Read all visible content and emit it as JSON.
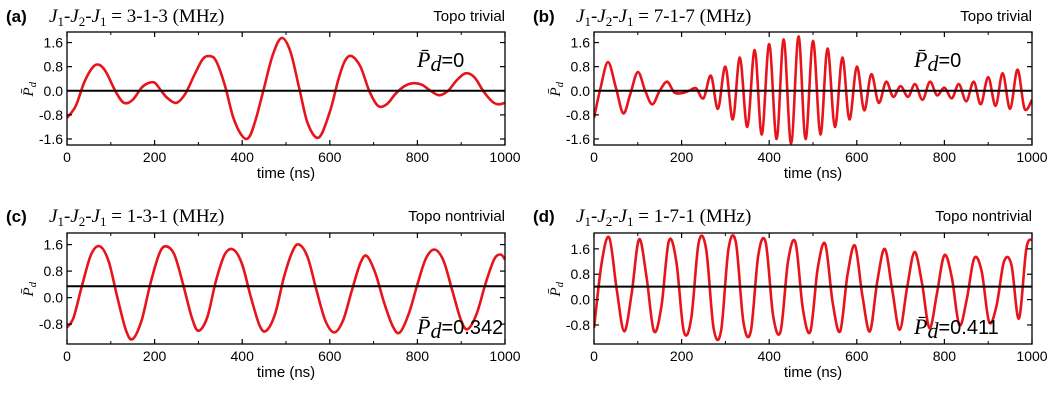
{
  "figure": {
    "x_axis_label": "time (ns)",
    "y_axis_label": "P̄",
    "y_axis_label_sub": "d",
    "avg_symbol": "P̄",
    "avg_symbol_sub": "d",
    "avg_eq": "=",
    "curve_color": "#e8141b",
    "axis_color": "#000000"
  },
  "chart_data": [
    {
      "id": "a",
      "type": "line",
      "panel_label": "(a)",
      "formula_prefix": "J",
      "formula_values": "3-1-3",
      "formula_unit": "(MHz)",
      "regime": "Topo trivial",
      "avg_value": "0",
      "baseline": 0,
      "xlim": [
        0,
        1000
      ],
      "ylim": [
        -1.8,
        1.95
      ],
      "xticks": [
        "0",
        "200",
        "400",
        "600",
        "800",
        "1000"
      ],
      "yticks": [
        "1.6",
        "0.8",
        "0.0",
        "-0.8",
        "-1.6"
      ],
      "series": [
        {
          "color": "#e8141b",
          "x": [
            0,
            20,
            40,
            60,
            75,
            90,
            110,
            130,
            150,
            170,
            185,
            200,
            215,
            230,
            250,
            270,
            290,
            310,
            325,
            340,
            360,
            380,
            400,
            415,
            430,
            450,
            470,
            490,
            510,
            530,
            550,
            575,
            600,
            620,
            635,
            650,
            670,
            690,
            710,
            730,
            750,
            770,
            790,
            810,
            830,
            850,
            870,
            890,
            910,
            930,
            950,
            970,
            985,
            1000
          ],
          "y": [
            -0.9,
            -0.5,
            0.3,
            0.8,
            0.85,
            0.6,
            0.0,
            -0.4,
            -0.3,
            0.1,
            0.25,
            0.27,
            0.0,
            -0.25,
            -0.4,
            -0.1,
            0.5,
            1.05,
            1.15,
            1.0,
            0.2,
            -0.9,
            -1.5,
            -1.55,
            -1.0,
            0.1,
            1.2,
            1.75,
            1.3,
            0.1,
            -1.1,
            -1.55,
            -0.7,
            0.4,
            1.0,
            1.15,
            0.8,
            0.0,
            -0.5,
            -0.45,
            -0.1,
            0.15,
            0.25,
            0.2,
            0.0,
            -0.15,
            0.0,
            0.35,
            0.58,
            0.45,
            0.0,
            -0.35,
            -0.45,
            -0.4
          ]
        }
      ]
    },
    {
      "id": "b",
      "type": "line",
      "panel_label": "(b)",
      "formula_prefix": "J",
      "formula_values": "7-1-7",
      "formula_unit": "(MHz)",
      "regime": "Topo trivial",
      "avg_value": "0",
      "baseline": 0,
      "xlim": [
        0,
        1000
      ],
      "ylim": [
        -1.8,
        1.95
      ],
      "xticks": [
        "0",
        "200",
        "400",
        "600",
        "800",
        "1000"
      ],
      "yticks": [
        "1.6",
        "0.8",
        "0.0",
        "-0.8",
        "-1.6"
      ],
      "series": [
        {
          "color": "#e8141b",
          "x": [
            0,
            15,
            32,
            50,
            67,
            83,
            100,
            117,
            133,
            150,
            167,
            183,
            200,
            217,
            233,
            250,
            267,
            283,
            300,
            317,
            333,
            350,
            367,
            383,
            400,
            417,
            433,
            450,
            467,
            483,
            500,
            517,
            533,
            550,
            567,
            583,
            600,
            617,
            633,
            650,
            667,
            683,
            700,
            717,
            733,
            750,
            767,
            783,
            800,
            817,
            833,
            850,
            867,
            883,
            900,
            917,
            933,
            950,
            967,
            983,
            1000
          ],
          "y": [
            -0.9,
            0.1,
            0.95,
            0.1,
            -0.75,
            -0.1,
            0.62,
            0.0,
            -0.45,
            0.0,
            0.3,
            -0.05,
            -0.08,
            0.0,
            0.08,
            -0.25,
            0.5,
            -0.6,
            0.8,
            -0.95,
            1.1,
            -1.2,
            1.35,
            -1.45,
            1.55,
            -1.6,
            1.7,
            -1.75,
            1.8,
            -1.6,
            1.65,
            -1.45,
            1.4,
            -1.2,
            1.1,
            -0.95,
            0.8,
            -0.65,
            0.55,
            -0.4,
            0.3,
            -0.2,
            0.15,
            -0.2,
            0.22,
            -0.3,
            0.3,
            -0.15,
            0.1,
            -0.25,
            0.22,
            -0.35,
            0.3,
            -0.45,
            0.45,
            -0.5,
            0.58,
            -0.6,
            0.7,
            -0.6,
            -0.3
          ]
        }
      ]
    },
    {
      "id": "c",
      "type": "line",
      "panel_label": "(c)",
      "formula_prefix": "J",
      "formula_values": "1-3-1",
      "formula_unit": "(MHz)",
      "regime": "Topo nontrivial",
      "avg_value": "0.342",
      "baseline": 0.342,
      "xlim": [
        0,
        1000
      ],
      "ylim": [
        -1.4,
        1.95
      ],
      "xticks": [
        "0",
        "200",
        "400",
        "600",
        "800",
        "1000"
      ],
      "yticks": [
        "1.6",
        "0.8",
        "0.0",
        "-0.8"
      ],
      "series": [
        {
          "color": "#e8141b",
          "x": [
            0,
            15,
            35,
            55,
            75,
            95,
            115,
            135,
            150,
            170,
            190,
            210,
            225,
            245,
            265,
            285,
            300,
            320,
            340,
            360,
            380,
            400,
            420,
            440,
            455,
            475,
            495,
            515,
            530,
            550,
            570,
            590,
            610,
            630,
            650,
            670,
            685,
            705,
            725,
            745,
            760,
            780,
            800,
            820,
            840,
            860,
            880,
            900,
            915,
            935,
            955,
            975,
            990,
            1000
          ],
          "y": [
            -0.9,
            -0.6,
            0.4,
            1.3,
            1.55,
            1.1,
            0.0,
            -1.0,
            -1.25,
            -0.7,
            0.4,
            1.3,
            1.55,
            1.3,
            0.4,
            -0.6,
            -1.0,
            -0.6,
            0.5,
            1.3,
            1.45,
            1.0,
            0.0,
            -0.85,
            -1.0,
            -0.5,
            0.6,
            1.4,
            1.6,
            1.2,
            0.2,
            -0.7,
            -1.05,
            -0.7,
            0.2,
            1.05,
            1.25,
            0.7,
            -0.2,
            -0.9,
            -1.05,
            -0.5,
            0.4,
            1.2,
            1.45,
            1.1,
            0.2,
            -0.7,
            -0.95,
            -0.5,
            0.4,
            1.15,
            1.3,
            1.15
          ]
        }
      ]
    },
    {
      "id": "d",
      "type": "line",
      "panel_label": "(d)",
      "formula_prefix": "J",
      "formula_values": "1-7-1",
      "formula_unit": "(MHz)",
      "regime": "Topo nontrivial",
      "avg_value": "0.411",
      "baseline": 0.411,
      "xlim": [
        0,
        1000
      ],
      "ylim": [
        -1.4,
        2.1
      ],
      "xticks": [
        "0",
        "200",
        "400",
        "600",
        "800",
        "1000"
      ],
      "yticks": [
        "1.6",
        "0.8",
        "0.0",
        "-0.8"
      ],
      "series": [
        {
          "color": "#e8141b",
          "x": [
            0,
            18,
            35,
            52,
            69,
            86,
            103,
            120,
            137,
            154,
            171,
            188,
            205,
            222,
            239,
            256,
            273,
            290,
            307,
            324,
            341,
            358,
            375,
            392,
            409,
            426,
            443,
            460,
            477,
            494,
            511,
            528,
            545,
            562,
            579,
            596,
            613,
            630,
            647,
            664,
            681,
            698,
            715,
            732,
            749,
            766,
            783,
            800,
            817,
            834,
            851,
            868,
            885,
            902,
            919,
            936,
            953,
            970,
            987,
            1000
          ],
          "y": [
            -0.9,
            1.2,
            1.95,
            0.3,
            -1.0,
            0.2,
            1.9,
            0.7,
            -1.0,
            -0.2,
            1.85,
            1.2,
            -1.0,
            -0.6,
            1.8,
            1.6,
            -0.9,
            -1.0,
            1.6,
            1.8,
            -0.7,
            -1.0,
            1.4,
            1.8,
            -0.5,
            -1.0,
            1.2,
            1.8,
            -0.3,
            -1.0,
            1.0,
            1.75,
            -0.1,
            -1.0,
            0.8,
            1.7,
            0.1,
            -1.0,
            0.6,
            1.6,
            0.3,
            -0.95,
            0.4,
            1.5,
            0.5,
            -0.9,
            0.2,
            1.4,
            0.7,
            -0.8,
            0.0,
            1.3,
            0.9,
            -0.7,
            -0.2,
            1.2,
            1.1,
            -0.6,
            1.6,
            1.9
          ]
        }
      ]
    }
  ]
}
